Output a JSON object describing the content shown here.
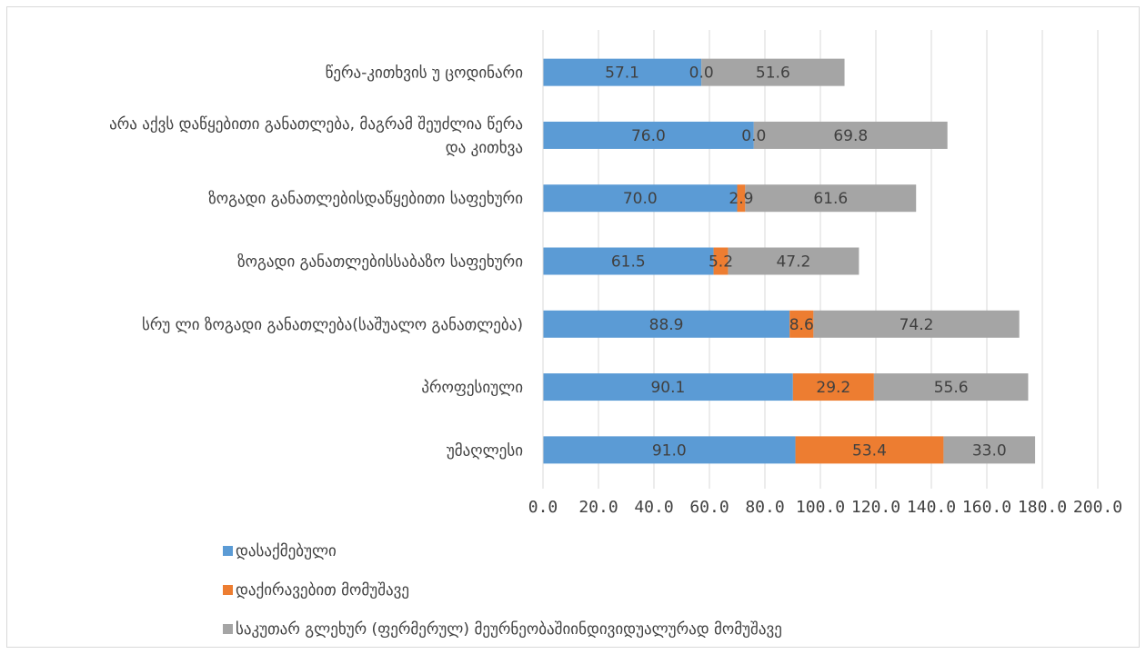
{
  "chart_data": {
    "type": "bar",
    "orientation": "horizontal",
    "stacked": true,
    "categories": [
      "წერა-კითხვის უ ცოდინარი",
      "არა აქვს დაწყებითი განათლება, მაგრამ შეუძლია წერა და კითხვა",
      "ზოგადი  განათლებისდაწყებითი საფეხური",
      "ზოგადი  განათლებისსაბაზო საფეხური",
      "სრუ ლი ზოგადი  განათლება(საშუალო განათლება)",
      "პროფესიული",
      "უმაღლესი"
    ],
    "category_lines": [
      [
        "წერა-კითხვის უ ცოდინარი"
      ],
      [
        "არა აქვს დაწყებითი განათლება, მაგრამ შეუძლია  წერა",
        "და კითხვა"
      ],
      [
        "ზოგადი  განათლებისდაწყებითი საფეხური"
      ],
      [
        "ზოგადი  განათლებისსაბაზო საფეხური"
      ],
      [
        "სრუ ლი ზოგადი  განათლება(საშუალო განათლება)"
      ],
      [
        "პროფესიული"
      ],
      [
        "უმაღლესი"
      ]
    ],
    "series": [
      {
        "name": "დასაქმებული",
        "color": "#5b9bd5",
        "values": [
          57.1,
          76.0,
          70.0,
          61.5,
          88.9,
          90.1,
          91.0
        ],
        "labels": [
          "57.1",
          "76.0",
          "70.0",
          "61.5",
          "88.9",
          "90.1",
          "91.0"
        ]
      },
      {
        "name": "დაქირავებით მომუშავე",
        "color": "#ed7d31",
        "values": [
          0.0,
          0.0,
          2.9,
          5.2,
          8.6,
          29.2,
          53.4
        ],
        "labels": [
          "0.0",
          "0.0",
          "2.9",
          "5.2",
          "8.6",
          "29.2",
          "53.4"
        ]
      },
      {
        "name": "საკუთარ გლეხურ (ფერმერულ) მეურნეობაშიინდივიდუალურად  მომუშავე",
        "color": "#a5a5a5",
        "values": [
          51.6,
          69.8,
          61.6,
          47.2,
          74.2,
          55.6,
          33.0
        ],
        "labels": [
          "51.6",
          "69.8",
          "61.6",
          "47.2",
          "74.2",
          "55.6",
          "33.0"
        ]
      }
    ],
    "xlim": [
      0,
      200
    ],
    "x_ticks": [
      "0.0",
      "20.0",
      "40.0",
      "60.0",
      "80.0",
      "100.0",
      "120.0",
      "140.0",
      "160.0",
      "180.0",
      "200.0"
    ],
    "grid": "vertical",
    "legend_position": "bottom-left",
    "title": "",
    "xlabel": "",
    "ylabel": "",
    "gridline_color": "#d9d9d9"
  }
}
